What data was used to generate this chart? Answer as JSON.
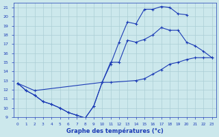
{
  "xlabel": "Graphe des températures (°c)",
  "xlim": [
    -0.5,
    23.5
  ],
  "ylim": [
    9,
    21.5
  ],
  "yticks": [
    9,
    10,
    11,
    12,
    13,
    14,
    15,
    16,
    17,
    18,
    19,
    20,
    21
  ],
  "xticks": [
    0,
    1,
    2,
    3,
    4,
    5,
    6,
    7,
    8,
    9,
    10,
    11,
    12,
    13,
    14,
    15,
    16,
    17,
    18,
    19,
    20,
    21,
    22,
    23
  ],
  "bg_color": "#cce8ec",
  "line_color": "#1a3ab5",
  "grid_color": "#aacdd4",
  "series": [
    {
      "x": [
        0,
        1,
        2,
        3,
        4,
        5,
        6,
        7,
        8,
        9,
        10,
        11,
        12,
        13,
        14,
        15,
        16,
        17,
        18,
        19,
        20,
        21,
        22,
        23
      ],
      "y": [
        12.7,
        11.9,
        11.4,
        10.7,
        10.4,
        10.0,
        9.5,
        9.2,
        8.9,
        10.2,
        12.8,
        14.8,
        17.2,
        19.4,
        19.2,
        20.8,
        20.8,
        21.1,
        21.0,
        20.3,
        20.2,
        null,
        null,
        null
      ]
    },
    {
      "x": [
        0,
        1,
        2,
        3,
        4,
        5,
        6,
        7,
        8,
        9,
        10,
        11,
        12,
        13,
        14,
        15,
        16,
        17,
        18,
        19,
        20,
        21,
        22,
        23
      ],
      "y": [
        12.7,
        11.9,
        11.4,
        10.7,
        10.4,
        10.0,
        9.5,
        9.2,
        8.9,
        10.2,
        12.8,
        15.0,
        15.0,
        17.4,
        17.2,
        17.5,
        18.0,
        18.8,
        18.5,
        18.5,
        17.2,
        16.8,
        16.2,
        15.5
      ]
    },
    {
      "x": [
        0,
        2,
        10,
        11,
        14,
        15,
        16,
        17,
        18,
        19,
        20,
        21,
        22,
        23
      ],
      "y": [
        12.7,
        11.9,
        12.8,
        12.8,
        13.0,
        13.2,
        13.7,
        14.2,
        14.8,
        15.0,
        15.3,
        15.5,
        15.5,
        15.5
      ]
    }
  ]
}
